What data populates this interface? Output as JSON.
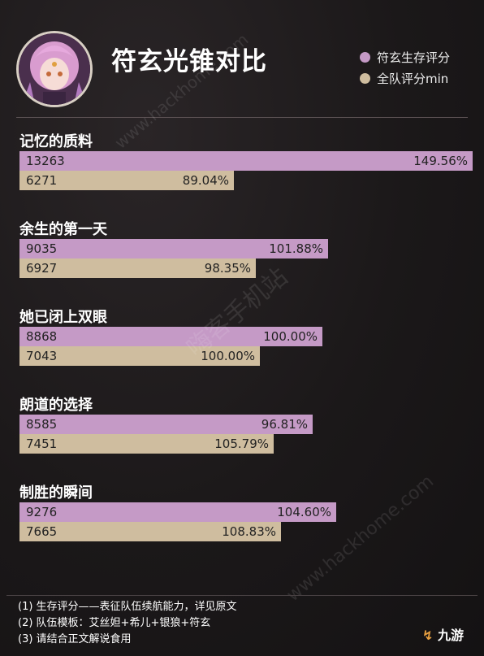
{
  "header": {
    "title": "符玄光锥对比"
  },
  "legend": {
    "series1": "符玄生存评分",
    "series2": "全队评分min"
  },
  "colors": {
    "series1": "#c59ac6",
    "series2": "#cfbd9f"
  },
  "chart_data": {
    "type": "bar",
    "orientation": "horizontal",
    "title": "符玄光锥对比",
    "categories": [
      "记忆的质料",
      "余生的第一天",
      "她已闭上双眼",
      "朗道的选择",
      "制胜的瞬间"
    ],
    "series": [
      {
        "name": "符玄生存评分",
        "values": [
          13263,
          9035,
          8868,
          8585,
          9276
        ],
        "percent_labels": [
          "149.56%",
          "101.88%",
          "100.00%",
          "96.81%",
          "104.60%"
        ]
      },
      {
        "name": "全队评分min",
        "values": [
          6271,
          6927,
          7043,
          7451,
          7665
        ],
        "percent_labels": [
          "89.04%",
          "98.35%",
          "100.00%",
          "105.79%",
          "108.83%"
        ]
      }
    ],
    "legend_position": "top-right",
    "grid": false
  },
  "footnotes": [
    "(1) 生存评分——表征队伍续航能力，详见原文",
    "(2) 队伍模板：艾丝妲+希儿+银狼+符玄",
    "(3) 请结合正文解说食用"
  ],
  "watermarks": [
    "嗨客手机站",
    "www.hackhome.com",
    "www.hackhome.com"
  ],
  "logo_text": "九游"
}
